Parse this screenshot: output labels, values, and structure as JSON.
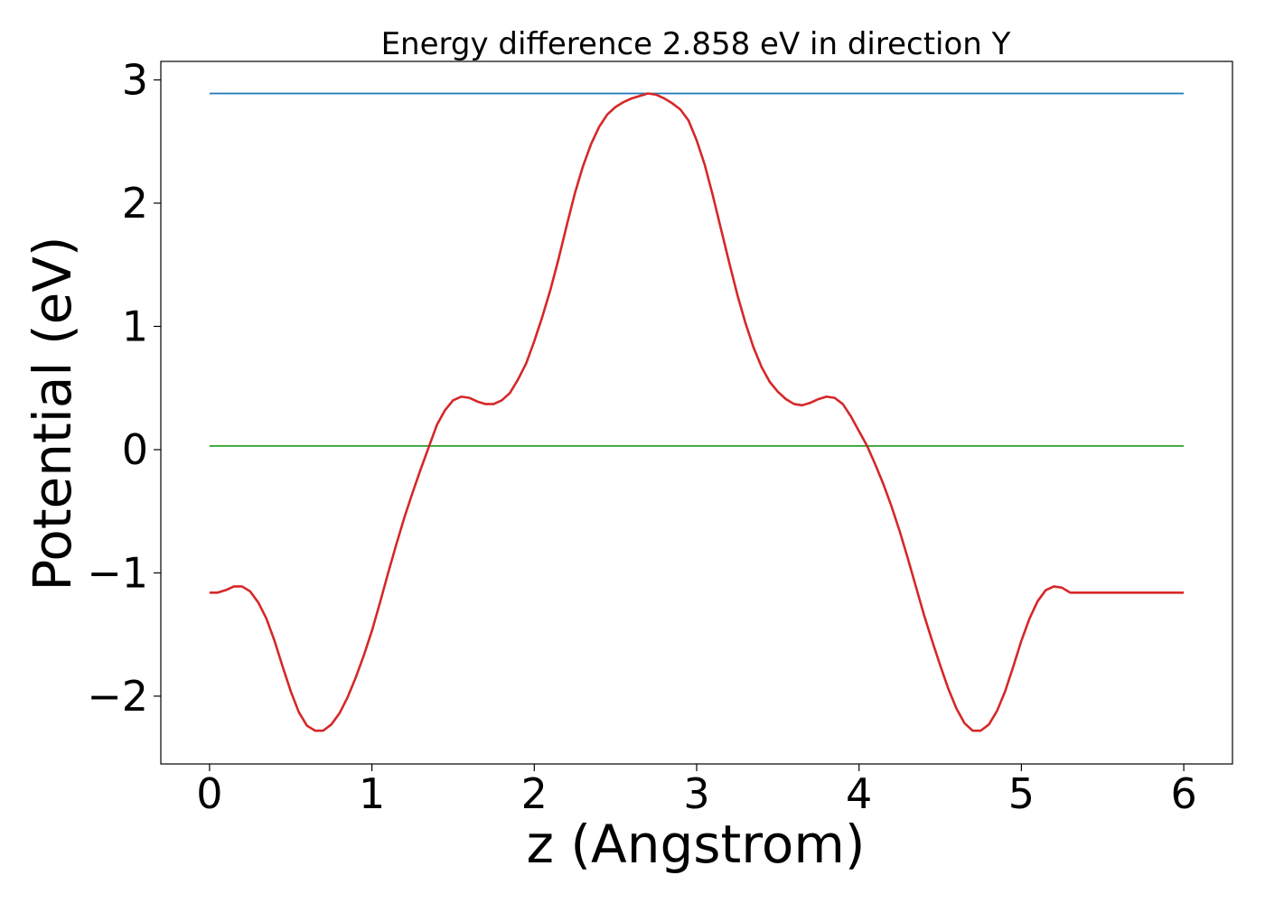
{
  "chart_data": {
    "type": "line",
    "title": "Energy difference 2.858 eV in direction Y",
    "xlabel": "z (Angstrom)",
    "ylabel": "Potential (eV)",
    "xlim": [
      -0.3,
      6.3
    ],
    "ylim": [
      -2.55,
      3.15
    ],
    "xticks": [
      0,
      1,
      2,
      3,
      4,
      5,
      6
    ],
    "xtick_labels": [
      "0",
      "1",
      "2",
      "3",
      "4",
      "5",
      "6"
    ],
    "yticks": [
      -2,
      -1,
      0,
      1,
      2,
      3
    ],
    "ytick_labels": [
      "−2",
      "−1",
      "0",
      "1",
      "2",
      "3"
    ],
    "grid": false,
    "legend": "none",
    "series": [
      {
        "color": "#1f77b4",
        "x": [
          0,
          6
        ],
        "y": [
          2.89,
          2.89
        ]
      },
      {
        "color": "#2ca02c",
        "x": [
          0,
          6
        ],
        "y": [
          0.03,
          0.03
        ]
      },
      {
        "color": "#d62728",
        "x": [
          0,
          0.05,
          0.1,
          0.15,
          0.2,
          0.25,
          0.3,
          0.35,
          0.4,
          0.45,
          0.5,
          0.55,
          0.6,
          0.65,
          0.7,
          0.75,
          0.8,
          0.85,
          0.9,
          0.95,
          1.0,
          1.05,
          1.1,
          1.15,
          1.2,
          1.25,
          1.3,
          1.35,
          1.4,
          1.45,
          1.5,
          1.55,
          1.6,
          1.65,
          1.7,
          1.75,
          1.8,
          1.85,
          1.9,
          1.95,
          2.0,
          2.05,
          2.1,
          2.15,
          2.2,
          2.25,
          2.3,
          2.35,
          2.4,
          2.45,
          2.5,
          2.55,
          2.6,
          2.65,
          2.7,
          2.75,
          2.8,
          2.85,
          2.9,
          2.95,
          3.0,
          3.05,
          3.1,
          3.15,
          3.2,
          3.25,
          3.3,
          3.35,
          3.4,
          3.45,
          3.5,
          3.55,
          3.6,
          3.65,
          3.7,
          3.75,
          3.8,
          3.85,
          3.9,
          3.95,
          4.0,
          4.05,
          4.1,
          4.15,
          4.2,
          4.25,
          4.3,
          4.35,
          4.4,
          4.45,
          4.5,
          4.55,
          4.6,
          4.65,
          4.7,
          4.75,
          4.8,
          4.85,
          4.9,
          4.95,
          5.0,
          5.05,
          5.1,
          5.15,
          5.2,
          5.25,
          5.3,
          5.35,
          5.4,
          5.45,
          5.5,
          5.55,
          5.6,
          5.65,
          5.7,
          5.75,
          5.8,
          5.85,
          5.9,
          5.95,
          6.0
        ],
        "y": [
          -1.16,
          -1.16,
          -1.14,
          -1.11,
          -1.11,
          -1.15,
          -1.24,
          -1.37,
          -1.55,
          -1.76,
          -1.96,
          -2.13,
          -2.24,
          -2.28,
          -2.28,
          -2.23,
          -2.14,
          -2.01,
          -1.85,
          -1.67,
          -1.47,
          -1.24,
          -1.0,
          -0.77,
          -0.55,
          -0.35,
          -0.16,
          0.02,
          0.2,
          0.32,
          0.4,
          0.43,
          0.42,
          0.39,
          0.37,
          0.37,
          0.4,
          0.46,
          0.57,
          0.7,
          0.88,
          1.08,
          1.3,
          1.55,
          1.82,
          2.08,
          2.3,
          2.48,
          2.62,
          2.72,
          2.78,
          2.82,
          2.85,
          2.87,
          2.89,
          2.88,
          2.85,
          2.81,
          2.76,
          2.67,
          2.51,
          2.31,
          2.06,
          1.79,
          1.52,
          1.26,
          1.03,
          0.83,
          0.67,
          0.55,
          0.47,
          0.41,
          0.37,
          0.36,
          0.38,
          0.41,
          0.43,
          0.42,
          0.37,
          0.27,
          0.15,
          0.03,
          -0.12,
          -0.28,
          -0.46,
          -0.66,
          -0.88,
          -1.11,
          -1.34,
          -1.55,
          -1.75,
          -1.94,
          -2.1,
          -2.22,
          -2.28,
          -2.28,
          -2.23,
          -2.12,
          -1.96,
          -1.76,
          -1.55,
          -1.37,
          -1.23,
          -1.14,
          -1.11,
          -1.12,
          -1.16,
          -1.16,
          -1.16,
          -1.16,
          -1.16,
          -1.16,
          -1.16,
          -1.16,
          -1.16,
          -1.16,
          -1.16,
          -1.16,
          -1.16,
          -1.16,
          -1.16
        ]
      }
    ]
  }
}
